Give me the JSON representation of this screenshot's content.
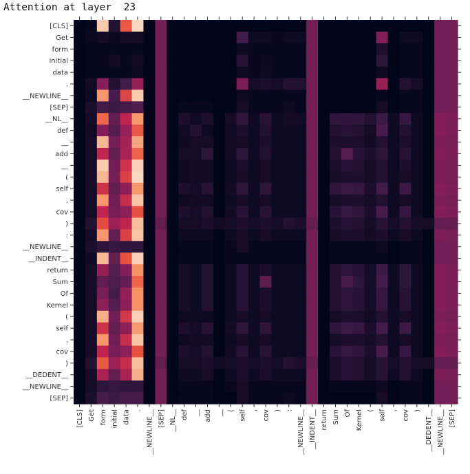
{
  "chart_data": {
    "type": "heatmap",
    "title": "Attention at layer  23",
    "y_labels": [
      "[CLS]",
      "Get",
      "form",
      "initial",
      "data",
      ".",
      "__NEWLINE__",
      "[SEP]",
      "__NL__",
      "def",
      "__",
      "add",
      "__",
      "(",
      "self",
      ",",
      "cov",
      ")",
      ":",
      "__NEWLINE__",
      "__INDENT__",
      "return",
      "Sum",
      "Of",
      "Kernel",
      "(",
      "self",
      ",",
      "cov",
      ")",
      "__DEDENT__",
      "__NEWLINE__",
      "[SEP]"
    ],
    "x_labels": [
      "[CLS]",
      "Get",
      "form",
      "initial",
      "data",
      ".",
      "__NEWLINE__",
      "[SEP]",
      "__NL__",
      "def",
      "__",
      "add",
      "__",
      "(",
      "self",
      ",",
      "cov",
      ")",
      ":",
      "__NEWLINE__",
      "__INDENT__",
      "return",
      "Sum",
      "Of",
      "Kernel",
      "(",
      "self",
      ",",
      "cov",
      ")",
      "__DEDENT__",
      "__NEWLINE__",
      "[SEP]"
    ],
    "colormap": "rocket",
    "value_range": [
      0,
      1
    ],
    "rows": [
      [
        0.0,
        0.02,
        0.95,
        0.1,
        0.72,
        0.97,
        0.0,
        0.35,
        0.0,
        0.0,
        0.0,
        0.0,
        0.0,
        0.0,
        0.0,
        0.0,
        0.0,
        0.0,
        0.0,
        0.0,
        0.35,
        0.0,
        0.0,
        0.0,
        0.0,
        0.0,
        0.0,
        0.0,
        0.0,
        0.0,
        0.0,
        0.35,
        0.35
      ],
      [
        0.0,
        0.03,
        0.05,
        0.03,
        0.05,
        0.05,
        0.0,
        0.35,
        0.0,
        0.0,
        0.0,
        0.0,
        0.0,
        0.0,
        0.2,
        0.04,
        0.04,
        0.02,
        0.04,
        0.04,
        0.35,
        0.0,
        0.0,
        0.0,
        0.0,
        0.0,
        0.4,
        0.0,
        0.04,
        0.04,
        0.0,
        0.35,
        0.35
      ],
      [
        0.0,
        0.01,
        0.02,
        0.02,
        0.02,
        0.02,
        0.0,
        0.35,
        0.0,
        0.0,
        0.0,
        0.0,
        0.0,
        0.0,
        0.04,
        0.02,
        0.02,
        0.02,
        0.02,
        0.02,
        0.35,
        0.0,
        0.0,
        0.0,
        0.0,
        0.0,
        0.08,
        0.0,
        0.02,
        0.02,
        0.0,
        0.35,
        0.35
      ],
      [
        0.0,
        0.02,
        0.02,
        0.05,
        0.02,
        0.05,
        0.0,
        0.35,
        0.0,
        0.0,
        0.0,
        0.0,
        0.0,
        0.0,
        0.12,
        0.02,
        0.03,
        0.02,
        0.02,
        0.02,
        0.35,
        0.0,
        0.0,
        0.0,
        0.0,
        0.0,
        0.14,
        0.0,
        0.02,
        0.02,
        0.0,
        0.35,
        0.35
      ],
      [
        0.0,
        0.02,
        0.02,
        0.02,
        0.02,
        0.04,
        0.0,
        0.35,
        0.0,
        0.0,
        0.0,
        0.0,
        0.0,
        0.0,
        0.04,
        0.02,
        0.04,
        0.02,
        0.02,
        0.02,
        0.35,
        0.0,
        0.0,
        0.0,
        0.0,
        0.0,
        0.04,
        0.0,
        0.02,
        0.02,
        0.0,
        0.35,
        0.35
      ],
      [
        0.0,
        0.05,
        0.4,
        0.1,
        0.2,
        0.45,
        0.0,
        0.35,
        0.0,
        0.0,
        0.0,
        0.0,
        0.0,
        0.0,
        0.38,
        0.06,
        0.08,
        0.06,
        0.1,
        0.1,
        0.35,
        0.0,
        0.0,
        0.0,
        0.0,
        0.0,
        0.45,
        0.0,
        0.1,
        0.06,
        0.0,
        0.35,
        0.35
      ],
      [
        0.0,
        0.04,
        0.85,
        0.22,
        0.66,
        0.95,
        0.0,
        0.35,
        0.0,
        0.0,
        0.0,
        0.0,
        0.0,
        0.0,
        0.04,
        0.02,
        0.02,
        0.02,
        0.02,
        0.02,
        0.35,
        0.0,
        0.0,
        0.0,
        0.0,
        0.0,
        0.02,
        0.0,
        0.02,
        0.02,
        0.0,
        0.35,
        0.35
      ],
      [
        0.0,
        0.08,
        0.2,
        0.18,
        0.22,
        0.24,
        0.0,
        0.35,
        0.0,
        0.02,
        0.02,
        0.02,
        0.0,
        0.0,
        0.06,
        0.02,
        0.02,
        0.02,
        0.04,
        0.02,
        0.35,
        0.0,
        0.0,
        0.0,
        0.0,
        0.0,
        0.06,
        0.0,
        0.02,
        0.02,
        0.0,
        0.35,
        0.35
      ],
      [
        0.0,
        0.06,
        0.75,
        0.3,
        0.55,
        0.85,
        0.0,
        0.35,
        0.0,
        0.08,
        0.05,
        0.08,
        0.0,
        0.06,
        0.15,
        0.04,
        0.12,
        0.04,
        0.05,
        0.05,
        0.35,
        0.0,
        0.14,
        0.15,
        0.14,
        0.1,
        0.18,
        0.04,
        0.16,
        0.04,
        0.0,
        0.4,
        0.38
      ],
      [
        0.0,
        0.05,
        0.4,
        0.26,
        0.45,
        0.72,
        0.0,
        0.35,
        0.0,
        0.05,
        0.1,
        0.04,
        0.0,
        0.05,
        0.08,
        0.04,
        0.1,
        0.04,
        0.04,
        0.04,
        0.35,
        0.0,
        0.1,
        0.12,
        0.1,
        0.06,
        0.22,
        0.04,
        0.1,
        0.04,
        0.0,
        0.4,
        0.38
      ],
      [
        0.0,
        0.06,
        0.92,
        0.36,
        0.48,
        0.88,
        0.0,
        0.35,
        0.0,
        0.04,
        0.06,
        0.06,
        0.0,
        0.05,
        0.06,
        0.04,
        0.08,
        0.04,
        0.04,
        0.04,
        0.35,
        0.0,
        0.08,
        0.08,
        0.08,
        0.05,
        0.1,
        0.04,
        0.08,
        0.04,
        0.0,
        0.38,
        0.36
      ],
      [
        0.0,
        0.06,
        0.55,
        0.3,
        0.5,
        0.74,
        0.0,
        0.35,
        0.0,
        0.06,
        0.06,
        0.14,
        0.0,
        0.05,
        0.14,
        0.04,
        0.1,
        0.04,
        0.04,
        0.04,
        0.35,
        0.0,
        0.1,
        0.26,
        0.12,
        0.08,
        0.14,
        0.04,
        0.12,
        0.04,
        0.0,
        0.4,
        0.38
      ],
      [
        0.0,
        0.06,
        0.95,
        0.34,
        0.6,
        0.96,
        0.0,
        0.35,
        0.0,
        0.04,
        0.05,
        0.05,
        0.0,
        0.04,
        0.08,
        0.04,
        0.06,
        0.04,
        0.04,
        0.04,
        0.35,
        0.0,
        0.08,
        0.12,
        0.1,
        0.06,
        0.1,
        0.04,
        0.08,
        0.04,
        0.0,
        0.38,
        0.36
      ],
      [
        0.0,
        0.06,
        0.92,
        0.36,
        0.65,
        0.97,
        0.0,
        0.35,
        0.0,
        0.04,
        0.05,
        0.05,
        0.0,
        0.04,
        0.06,
        0.04,
        0.06,
        0.04,
        0.04,
        0.04,
        0.35,
        0.0,
        0.06,
        0.08,
        0.08,
        0.06,
        0.1,
        0.04,
        0.06,
        0.04,
        0.0,
        0.38,
        0.36
      ],
      [
        0.0,
        0.06,
        0.6,
        0.3,
        0.42,
        0.85,
        0.0,
        0.35,
        0.0,
        0.08,
        0.06,
        0.12,
        0.0,
        0.05,
        0.14,
        0.04,
        0.14,
        0.04,
        0.04,
        0.04,
        0.35,
        0.0,
        0.14,
        0.18,
        0.16,
        0.08,
        0.2,
        0.04,
        0.18,
        0.04,
        0.0,
        0.4,
        0.38
      ],
      [
        0.0,
        0.06,
        0.85,
        0.34,
        0.58,
        0.94,
        0.0,
        0.35,
        0.0,
        0.04,
        0.05,
        0.05,
        0.0,
        0.04,
        0.06,
        0.04,
        0.06,
        0.04,
        0.04,
        0.04,
        0.35,
        0.0,
        0.06,
        0.08,
        0.08,
        0.06,
        0.1,
        0.04,
        0.06,
        0.04,
        0.0,
        0.38,
        0.36
      ],
      [
        0.0,
        0.06,
        0.55,
        0.36,
        0.42,
        0.7,
        0.0,
        0.35,
        0.0,
        0.08,
        0.06,
        0.1,
        0.0,
        0.05,
        0.12,
        0.04,
        0.12,
        0.04,
        0.04,
        0.04,
        0.35,
        0.0,
        0.12,
        0.16,
        0.14,
        0.08,
        0.22,
        0.04,
        0.16,
        0.04,
        0.0,
        0.4,
        0.38
      ],
      [
        0.0,
        0.1,
        0.68,
        0.46,
        0.55,
        0.93,
        0.0,
        0.3,
        0.0,
        0.06,
        0.06,
        0.08,
        0.05,
        0.06,
        0.08,
        0.06,
        0.08,
        0.06,
        0.1,
        0.08,
        0.3,
        0.0,
        0.08,
        0.12,
        0.1,
        0.06,
        0.12,
        0.06,
        0.1,
        0.06,
        0.06,
        0.3,
        0.3
      ],
      [
        0.0,
        0.06,
        0.85,
        0.3,
        0.65,
        0.94,
        0.0,
        0.35,
        0.0,
        0.04,
        0.04,
        0.04,
        0.0,
        0.04,
        0.06,
        0.04,
        0.06,
        0.04,
        0.04,
        0.04,
        0.35,
        0.0,
        0.06,
        0.08,
        0.08,
        0.05,
        0.08,
        0.04,
        0.06,
        0.04,
        0.0,
        0.38,
        0.36
      ],
      [
        0.0,
        0.08,
        0.14,
        0.16,
        0.15,
        0.14,
        0.0,
        0.35,
        0.0,
        0.02,
        0.02,
        0.02,
        0.0,
        0.02,
        0.06,
        0.02,
        0.02,
        0.02,
        0.02,
        0.02,
        0.35,
        0.0,
        0.02,
        0.02,
        0.02,
        0.02,
        0.04,
        0.0,
        0.02,
        0.02,
        0.0,
        0.35,
        0.35
      ],
      [
        0.0,
        0.04,
        0.92,
        0.3,
        0.7,
        0.96,
        0.0,
        0.35,
        0.0,
        0.02,
        0.02,
        0.02,
        0.0,
        0.02,
        0.02,
        0.02,
        0.02,
        0.02,
        0.02,
        0.02,
        0.35,
        0.0,
        0.02,
        0.02,
        0.02,
        0.02,
        0.02,
        0.0,
        0.02,
        0.02,
        0.0,
        0.35,
        0.35
      ],
      [
        0.0,
        0.06,
        0.44,
        0.26,
        0.4,
        0.84,
        0.0,
        0.35,
        0.0,
        0.06,
        0.04,
        0.1,
        0.0,
        0.04,
        0.12,
        0.04,
        0.08,
        0.04,
        0.04,
        0.04,
        0.35,
        0.0,
        0.1,
        0.14,
        0.12,
        0.06,
        0.18,
        0.04,
        0.14,
        0.04,
        0.0,
        0.4,
        0.38
      ],
      [
        0.0,
        0.06,
        0.3,
        0.24,
        0.3,
        0.74,
        0.0,
        0.35,
        0.0,
        0.06,
        0.04,
        0.1,
        0.0,
        0.04,
        0.12,
        0.04,
        0.28,
        0.04,
        0.04,
        0.04,
        0.35,
        0.0,
        0.1,
        0.22,
        0.14,
        0.06,
        0.2,
        0.04,
        0.14,
        0.04,
        0.0,
        0.4,
        0.38
      ],
      [
        0.0,
        0.06,
        0.36,
        0.22,
        0.44,
        0.84,
        0.0,
        0.35,
        0.0,
        0.06,
        0.04,
        0.1,
        0.0,
        0.04,
        0.12,
        0.04,
        0.08,
        0.04,
        0.04,
        0.04,
        0.35,
        0.0,
        0.1,
        0.14,
        0.12,
        0.06,
        0.16,
        0.04,
        0.12,
        0.04,
        0.0,
        0.4,
        0.38
      ],
      [
        0.0,
        0.06,
        0.42,
        0.26,
        0.42,
        0.84,
        0.0,
        0.35,
        0.0,
        0.06,
        0.04,
        0.1,
        0.0,
        0.04,
        0.12,
        0.04,
        0.08,
        0.04,
        0.04,
        0.04,
        0.35,
        0.0,
        0.1,
        0.14,
        0.12,
        0.06,
        0.16,
        0.04,
        0.12,
        0.04,
        0.0,
        0.4,
        0.38
      ],
      [
        0.0,
        0.06,
        0.9,
        0.34,
        0.62,
        0.96,
        0.0,
        0.35,
        0.0,
        0.04,
        0.04,
        0.04,
        0.0,
        0.04,
        0.06,
        0.04,
        0.06,
        0.04,
        0.04,
        0.04,
        0.35,
        0.0,
        0.06,
        0.08,
        0.08,
        0.05,
        0.1,
        0.04,
        0.06,
        0.04,
        0.0,
        0.38,
        0.36
      ],
      [
        0.0,
        0.06,
        0.6,
        0.3,
        0.42,
        0.86,
        0.0,
        0.35,
        0.0,
        0.08,
        0.06,
        0.12,
        0.0,
        0.05,
        0.14,
        0.04,
        0.14,
        0.04,
        0.04,
        0.04,
        0.35,
        0.0,
        0.14,
        0.18,
        0.16,
        0.08,
        0.2,
        0.04,
        0.18,
        0.04,
        0.0,
        0.4,
        0.38
      ],
      [
        0.0,
        0.06,
        0.85,
        0.34,
        0.58,
        0.94,
        0.0,
        0.35,
        0.0,
        0.04,
        0.05,
        0.05,
        0.0,
        0.04,
        0.06,
        0.04,
        0.06,
        0.04,
        0.04,
        0.04,
        0.35,
        0.0,
        0.06,
        0.08,
        0.08,
        0.06,
        0.1,
        0.04,
        0.06,
        0.04,
        0.0,
        0.38,
        0.36
      ],
      [
        0.0,
        0.06,
        0.55,
        0.36,
        0.42,
        0.7,
        0.0,
        0.35,
        0.0,
        0.08,
        0.06,
        0.1,
        0.0,
        0.05,
        0.12,
        0.04,
        0.12,
        0.04,
        0.04,
        0.04,
        0.35,
        0.0,
        0.12,
        0.16,
        0.14,
        0.08,
        0.22,
        0.04,
        0.16,
        0.04,
        0.0,
        0.4,
        0.38
      ],
      [
        0.0,
        0.1,
        0.72,
        0.46,
        0.58,
        0.93,
        0.0,
        0.3,
        0.0,
        0.06,
        0.06,
        0.08,
        0.05,
        0.06,
        0.08,
        0.06,
        0.08,
        0.06,
        0.1,
        0.08,
        0.3,
        0.0,
        0.08,
        0.12,
        0.1,
        0.06,
        0.12,
        0.06,
        0.1,
        0.06,
        0.06,
        0.3,
        0.3
      ],
      [
        0.0,
        0.06,
        0.5,
        0.3,
        0.5,
        0.9,
        0.0,
        0.35,
        0.0,
        0.04,
        0.04,
        0.06,
        0.0,
        0.04,
        0.08,
        0.04,
        0.08,
        0.04,
        0.04,
        0.04,
        0.35,
        0.0,
        0.08,
        0.12,
        0.1,
        0.06,
        0.12,
        0.04,
        0.1,
        0.04,
        0.0,
        0.38,
        0.36
      ],
      [
        0.0,
        0.06,
        0.14,
        0.16,
        0.15,
        0.14,
        0.0,
        0.35,
        0.0,
        0.02,
        0.02,
        0.02,
        0.0,
        0.02,
        0.06,
        0.02,
        0.02,
        0.02,
        0.02,
        0.02,
        0.35,
        0.0,
        0.02,
        0.02,
        0.02,
        0.02,
        0.04,
        0.0,
        0.02,
        0.02,
        0.0,
        0.35,
        0.35
      ],
      [
        0.0,
        0.08,
        0.22,
        0.18,
        0.22,
        0.22,
        0.0,
        0.35,
        0.0,
        0.02,
        0.02,
        0.02,
        0.0,
        0.0,
        0.06,
        0.02,
        0.02,
        0.02,
        0.04,
        0.02,
        0.35,
        0.0,
        0.0,
        0.0,
        0.0,
        0.0,
        0.06,
        0.0,
        0.02,
        0.02,
        0.0,
        0.35,
        0.35
      ]
    ]
  }
}
